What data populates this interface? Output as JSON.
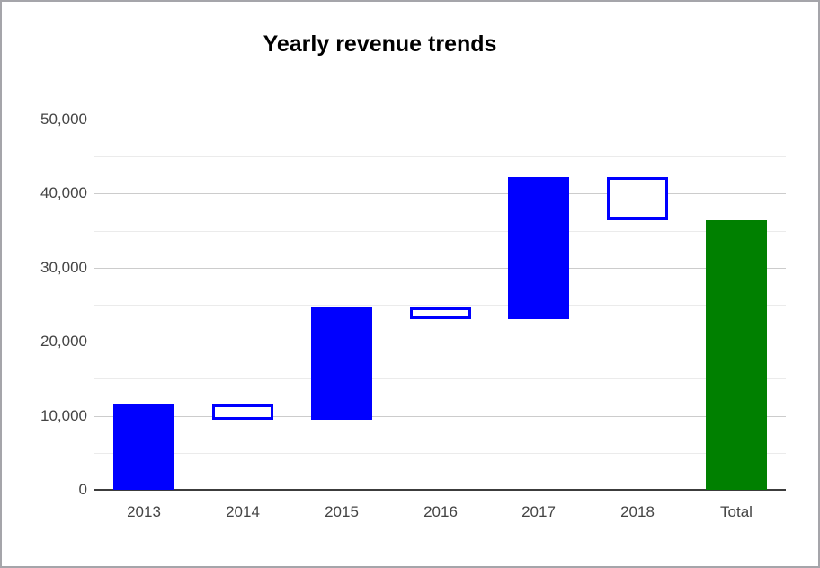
{
  "chart_data": {
    "type": "waterfall-bar",
    "title": "Yearly revenue trends",
    "categories": [
      "2013",
      "2014",
      "2015",
      "2016",
      "2017",
      "2018",
      "Total"
    ],
    "bars": [
      {
        "label": "2013",
        "kind": "increase",
        "from": 0,
        "to": 11500
      },
      {
        "label": "2014",
        "kind": "decrease",
        "from": 11500,
        "to": 9400
      },
      {
        "label": "2015",
        "kind": "increase",
        "from": 9400,
        "to": 24600
      },
      {
        "label": "2016",
        "kind": "decrease",
        "from": 24600,
        "to": 23000
      },
      {
        "label": "2017",
        "kind": "increase",
        "from": 23000,
        "to": 42200
      },
      {
        "label": "2018",
        "kind": "decrease",
        "from": 42200,
        "to": 36400
      },
      {
        "label": "Total",
        "kind": "total",
        "from": 0,
        "to": 36400
      }
    ],
    "y_axis": {
      "min": 0,
      "max": 50000,
      "major_step": 10000,
      "minor_step": 5000,
      "tick_labels": [
        "0",
        "10,000",
        "20,000",
        "30,000",
        "40,000",
        "50,000"
      ]
    },
    "xlabel": "",
    "ylabel": "",
    "legend": "none",
    "grid": true,
    "colors": {
      "increase_fill": "#0000ff",
      "decrease_fill": "#ffffff",
      "decrease_stroke": "#0000ff",
      "total_fill": "#008000",
      "grid_major": "#cccccc",
      "grid_minor": "#ebebeb",
      "baseline": "#3c3c3c",
      "axis_text": "#444444",
      "title_text": "#000000"
    }
  }
}
